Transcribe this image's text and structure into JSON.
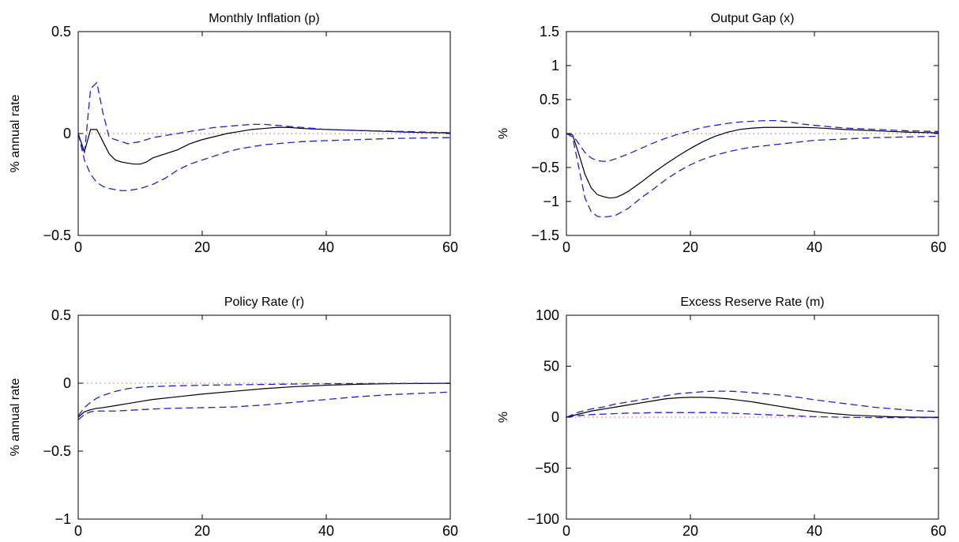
{
  "colors": {
    "median": "#000000",
    "band": "#2222cc",
    "zero": "#e05050"
  },
  "chart_data": [
    {
      "type": "line",
      "title": "Monthly Inflation (p)",
      "ylabel": "% annual rate",
      "xlim": [
        0,
        60
      ],
      "ylim": [
        -0.5,
        0.5
      ],
      "xticks": [
        "0",
        "20",
        "40",
        "60"
      ],
      "yticks": [
        "−0.5",
        "0",
        "0.5"
      ],
      "ytick_values": [
        -0.5,
        0,
        0.5
      ],
      "xtick_values": [
        0,
        20,
        40,
        60
      ],
      "grid": false,
      "series": [
        {
          "role": "median",
          "style": "solid",
          "x": [
            0,
            1,
            2,
            3,
            4,
            5,
            6,
            7,
            8,
            9,
            10,
            11,
            12,
            14,
            16,
            18,
            20,
            22,
            24,
            26,
            28,
            30,
            32,
            34,
            36,
            38,
            40,
            45,
            50,
            55,
            60
          ],
          "y": [
            0,
            -0.09,
            0.02,
            0.02,
            -0.04,
            -0.1,
            -0.13,
            -0.14,
            -0.145,
            -0.15,
            -0.15,
            -0.14,
            -0.12,
            -0.1,
            -0.08,
            -0.05,
            -0.03,
            -0.015,
            0,
            0.01,
            0.02,
            0.025,
            0.03,
            0.03,
            0.025,
            0.022,
            0.02,
            0.015,
            0.01,
            0.005,
            0.003
          ]
        },
        {
          "role": "upper",
          "style": "dashed",
          "x": [
            0,
            1,
            2,
            3,
            4,
            5,
            6,
            8,
            10,
            12,
            14,
            16,
            18,
            20,
            22,
            24,
            26,
            28,
            30,
            32,
            34,
            36,
            38,
            40,
            45,
            50,
            55,
            60
          ],
          "y": [
            0,
            -0.1,
            0.22,
            0.25,
            0.1,
            -0.02,
            -0.03,
            -0.05,
            -0.04,
            -0.02,
            -0.01,
            0,
            0.01,
            0.02,
            0.03,
            0.035,
            0.04,
            0.045,
            0.045,
            0.04,
            0.035,
            0.03,
            0.025,
            0.02,
            0.015,
            0.012,
            0.008,
            0.004
          ]
        },
        {
          "role": "lower",
          "style": "dashed",
          "x": [
            0,
            1,
            2,
            3,
            4,
            5,
            6,
            7,
            8,
            10,
            12,
            14,
            16,
            18,
            20,
            22,
            24,
            26,
            28,
            30,
            32,
            34,
            36,
            38,
            40,
            45,
            50,
            55,
            60
          ],
          "y": [
            0,
            -0.13,
            -0.2,
            -0.24,
            -0.26,
            -0.27,
            -0.275,
            -0.28,
            -0.28,
            -0.27,
            -0.25,
            -0.22,
            -0.18,
            -0.15,
            -0.13,
            -0.11,
            -0.09,
            -0.075,
            -0.065,
            -0.055,
            -0.05,
            -0.045,
            -0.04,
            -0.037,
            -0.035,
            -0.03,
            -0.025,
            -0.022,
            -0.02
          ]
        }
      ]
    },
    {
      "type": "line",
      "title": "Output Gap (x)",
      "ylabel": "%",
      "xlim": [
        0,
        60
      ],
      "ylim": [
        -1.5,
        1.5
      ],
      "xticks": [
        "0",
        "20",
        "40",
        "60"
      ],
      "yticks": [
        "−1.5",
        "−1",
        "−0.5",
        "0",
        "0.5",
        "1",
        "1.5"
      ],
      "ytick_values": [
        -1.5,
        -1,
        -0.5,
        0,
        0.5,
        1,
        1.5
      ],
      "xtick_values": [
        0,
        20,
        40,
        60
      ],
      "grid": false,
      "series": [
        {
          "role": "median",
          "style": "solid",
          "x": [
            0,
            1,
            2,
            3,
            4,
            5,
            6,
            7,
            8,
            9,
            10,
            12,
            14,
            16,
            18,
            20,
            22,
            24,
            26,
            28,
            30,
            32,
            34,
            36,
            38,
            40,
            45,
            50,
            55,
            60
          ],
          "y": [
            0,
            -0.02,
            -0.3,
            -0.6,
            -0.8,
            -0.9,
            -0.93,
            -0.95,
            -0.94,
            -0.9,
            -0.85,
            -0.72,
            -0.58,
            -0.45,
            -0.33,
            -0.22,
            -0.12,
            -0.04,
            0.02,
            0.06,
            0.08,
            0.09,
            0.09,
            0.09,
            0.09,
            0.085,
            0.06,
            0.04,
            0.02,
            0.01
          ]
        },
        {
          "role": "upper",
          "style": "dashed",
          "x": [
            0,
            1,
            2,
            3,
            4,
            5,
            6,
            7,
            8,
            10,
            12,
            14,
            16,
            18,
            20,
            22,
            24,
            26,
            28,
            30,
            32,
            34,
            36,
            38,
            40,
            45,
            50,
            55,
            60
          ],
          "y": [
            0,
            -0.02,
            -0.15,
            -0.28,
            -0.36,
            -0.4,
            -0.41,
            -0.4,
            -0.37,
            -0.3,
            -0.22,
            -0.14,
            -0.07,
            -0.01,
            0.04,
            0.09,
            0.12,
            0.15,
            0.17,
            0.18,
            0.19,
            0.19,
            0.17,
            0.14,
            0.12,
            0.08,
            0.06,
            0.04,
            0.03
          ]
        },
        {
          "role": "lower",
          "style": "dashed",
          "x": [
            0,
            1,
            2,
            3,
            4,
            5,
            6,
            7,
            8,
            10,
            12,
            14,
            16,
            18,
            20,
            22,
            24,
            26,
            28,
            30,
            32,
            34,
            36,
            38,
            40,
            45,
            50,
            55,
            60
          ],
          "y": [
            0,
            -0.05,
            -0.5,
            -0.95,
            -1.15,
            -1.22,
            -1.23,
            -1.22,
            -1.2,
            -1.1,
            -0.95,
            -0.82,
            -0.68,
            -0.56,
            -0.46,
            -0.38,
            -0.32,
            -0.27,
            -0.23,
            -0.2,
            -0.18,
            -0.16,
            -0.14,
            -0.12,
            -0.1,
            -0.08,
            -0.06,
            -0.05,
            -0.04
          ]
        }
      ]
    },
    {
      "type": "line",
      "title": "Policy Rate (r)",
      "ylabel": "% annual rate",
      "xlim": [
        0,
        60
      ],
      "ylim": [
        -1,
        0.5
      ],
      "xticks": [
        "0",
        "20",
        "40",
        "60"
      ],
      "yticks": [
        "−1",
        "−0.5",
        "0",
        "0.5"
      ],
      "ytick_values": [
        -1,
        -0.5,
        0,
        0.5
      ],
      "xtick_values": [
        0,
        20,
        40,
        60
      ],
      "grid": false,
      "series": [
        {
          "role": "median",
          "style": "solid",
          "x": [
            0,
            1,
            2,
            3,
            4,
            6,
            8,
            10,
            12,
            15,
            20,
            25,
            30,
            35,
            40,
            45,
            50,
            55,
            60
          ],
          "y": [
            -0.25,
            -0.21,
            -0.195,
            -0.185,
            -0.18,
            -0.165,
            -0.15,
            -0.135,
            -0.12,
            -0.105,
            -0.08,
            -0.06,
            -0.04,
            -0.025,
            -0.015,
            -0.008,
            -0.004,
            -0.002,
            -0.001
          ]
        },
        {
          "role": "upper",
          "style": "dashed",
          "x": [
            0,
            1,
            2,
            3,
            4,
            6,
            8,
            10,
            12,
            15,
            20,
            25,
            30,
            35,
            40,
            45,
            50,
            55,
            60
          ],
          "y": [
            -0.24,
            -0.18,
            -0.14,
            -0.11,
            -0.09,
            -0.06,
            -0.04,
            -0.03,
            -0.025,
            -0.02,
            -0.015,
            -0.012,
            -0.009,
            -0.006,
            -0.004,
            -0.003,
            -0.002,
            -0.001,
            0
          ]
        },
        {
          "role": "lower",
          "style": "dashed",
          "x": [
            0,
            1,
            2,
            3,
            4,
            6,
            8,
            10,
            12,
            15,
            20,
            25,
            30,
            35,
            40,
            45,
            50,
            55,
            60
          ],
          "y": [
            -0.27,
            -0.23,
            -0.21,
            -0.205,
            -0.205,
            -0.205,
            -0.2,
            -0.195,
            -0.19,
            -0.185,
            -0.18,
            -0.175,
            -0.16,
            -0.14,
            -0.12,
            -0.1,
            -0.085,
            -0.075,
            -0.065
          ]
        }
      ]
    },
    {
      "type": "line",
      "title": "Excess Reserve Rate (m)",
      "ylabel": "%",
      "xlim": [
        0,
        60
      ],
      "ylim": [
        -100,
        100
      ],
      "xticks": [
        "0",
        "20",
        "40",
        "60"
      ],
      "yticks": [
        "−100",
        "−50",
        "0",
        "50",
        "100"
      ],
      "ytick_values": [
        -100,
        -50,
        0,
        50,
        100
      ],
      "xtick_values": [
        0,
        20,
        40,
        60
      ],
      "grid": false,
      "series": [
        {
          "role": "median",
          "style": "solid",
          "x": [
            0,
            2,
            4,
            6,
            8,
            10,
            12,
            14,
            16,
            18,
            20,
            22,
            24,
            26,
            28,
            30,
            32,
            34,
            36,
            38,
            40,
            42,
            44,
            46,
            48,
            50,
            52,
            54,
            56,
            58,
            60
          ],
          "y": [
            0,
            3,
            6,
            8,
            10,
            12,
            14,
            16,
            18,
            19,
            19.5,
            19.5,
            19,
            18,
            16.5,
            15,
            13,
            11,
            9,
            7,
            5.5,
            4,
            3,
            2,
            1.5,
            1,
            0.5,
            0.2,
            0,
            -0.1,
            -0.2
          ]
        },
        {
          "role": "upper",
          "style": "dashed",
          "x": [
            0,
            2,
            4,
            6,
            8,
            10,
            12,
            14,
            16,
            18,
            20,
            22,
            24,
            26,
            28,
            30,
            32,
            34,
            36,
            38,
            40,
            42,
            44,
            46,
            48,
            50,
            52,
            54,
            56,
            58,
            60
          ],
          "y": [
            0,
            5,
            8,
            10,
            13,
            15,
            17,
            19,
            21,
            23,
            24,
            25,
            25.5,
            25.5,
            25,
            24,
            23,
            22,
            20.5,
            19,
            17,
            15.5,
            14,
            12.5,
            11,
            9.5,
            8.5,
            7.5,
            6.5,
            6,
            5.5
          ]
        },
        {
          "role": "lower",
          "style": "dashed",
          "x": [
            0,
            2,
            4,
            6,
            8,
            10,
            12,
            14,
            16,
            18,
            20,
            22,
            24,
            26,
            28,
            30,
            32,
            34,
            36,
            38,
            40,
            42,
            44,
            46,
            48,
            50,
            52,
            54,
            56,
            58,
            60
          ],
          "y": [
            0,
            1.5,
            2.5,
            3,
            3.5,
            4,
            4,
            4.5,
            4.5,
            4.5,
            4.5,
            4.5,
            4.5,
            4,
            3.5,
            3,
            2.5,
            2,
            1.5,
            1,
            0.5,
            0.3,
            0,
            -0.2,
            -0.3,
            -0.4,
            -0.5,
            -0.5,
            -0.5,
            -0.5,
            -0.5
          ]
        },
        {
          "role": "zero",
          "style": "dotted",
          "x": [
            0,
            60
          ],
          "y": [
            0,
            0
          ]
        }
      ]
    }
  ]
}
